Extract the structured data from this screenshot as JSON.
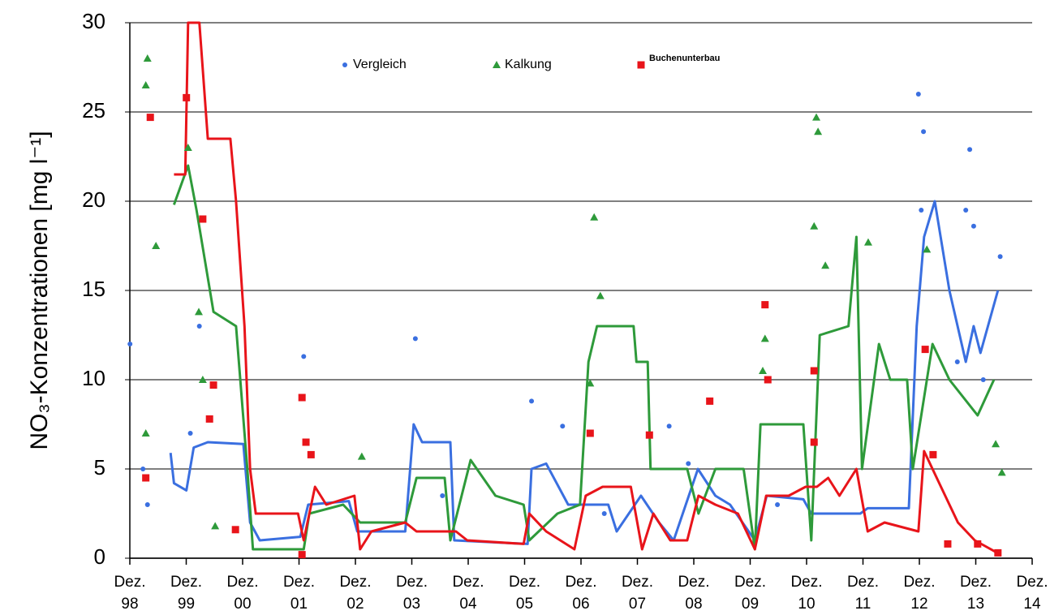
{
  "chart_data": {
    "type": "line",
    "ylabel": "NO₃-Konzentrationen [mg l⁻¹]",
    "xlim": [
      1998.917,
      2014.917
    ],
    "xticks": [
      {
        "value": 1998.917,
        "label": "Dez. 98"
      },
      {
        "value": 1999.917,
        "label": "Dez. 99"
      },
      {
        "value": 2000.917,
        "label": "Dez. 00"
      },
      {
        "value": 2001.917,
        "label": "Dez. 01"
      },
      {
        "value": 2002.917,
        "label": "Dez. 02"
      },
      {
        "value": 2003.917,
        "label": "Dez. 03"
      },
      {
        "value": 2004.917,
        "label": "Dez. 04"
      },
      {
        "value": 2005.917,
        "label": "Dez. 05"
      },
      {
        "value": 2006.917,
        "label": "Dez. 06"
      },
      {
        "value": 2007.917,
        "label": "Dez. 07"
      },
      {
        "value": 2008.917,
        "label": "Dez. 08"
      },
      {
        "value": 2009.917,
        "label": "Dez. 09"
      },
      {
        "value": 2010.917,
        "label": "Dez. 10"
      },
      {
        "value": 2011.917,
        "label": "Dez. 11"
      },
      {
        "value": 2012.917,
        "label": "Dez. 12"
      },
      {
        "value": 2013.917,
        "label": "Dez. 13"
      },
      {
        "value": 2014.917,
        "label": "Dez. 14"
      }
    ],
    "ylim": [
      0,
      30
    ],
    "yticks": [
      0,
      5,
      10,
      15,
      20,
      25,
      30
    ],
    "grid": true,
    "legend": "top",
    "series": [
      {
        "name": "Vergleich",
        "color": "#3a6fe0",
        "marker": "circle",
        "x": [
          1999.64,
          1999.7,
          1999.92,
          2000.05,
          2000.3,
          2000.93,
          2001.05,
          2001.22,
          2001.94,
          2002.08,
          2002.8,
          2002.95,
          2003.8,
          2003.95,
          2004.1,
          2004.6,
          2004.67,
          2005.97,
          2006.04,
          2006.3,
          2006.69,
          2007.4,
          2007.55,
          2007.98,
          2008.3,
          2008.56,
          2008.99,
          2009.3,
          2009.56,
          2010.0,
          2010.21,
          2010.86,
          2011.0,
          2011.87,
          2012.0,
          2012.73,
          2012.87,
          2013.0,
          2013.19,
          2013.45,
          2013.74,
          2013.88,
          2014.0,
          2014.31
        ],
        "values": [
          5.9,
          4.2,
          3.8,
          6.2,
          6.5,
          6.4,
          2,
          1,
          1.2,
          3,
          3.2,
          1.5,
          1.5,
          7.5,
          6.5,
          6.5,
          1,
          0.8,
          5,
          5.3,
          3,
          3,
          1.5,
          3.5,
          2,
          1,
          5,
          3.5,
          3,
          1,
          3.5,
          3.3,
          2.5,
          2.5,
          2.8,
          2.8,
          13,
          18,
          20,
          15,
          11,
          13,
          11.5,
          15
        ],
        "points_x": [
          1998.92,
          1999.15,
          1999.23,
          1999.99,
          2000.15,
          2002.0,
          2003.98,
          2004.46,
          2006.04,
          2006.59,
          2007.33,
          2008.48,
          2008.82,
          2010.4,
          2012.9,
          2012.99,
          2012.95,
          2013.81,
          2013.74,
          2013.88,
          2014.35,
          2014.05,
          2013.59
        ],
        "points_values": [
          12,
          5,
          3,
          7,
          13,
          11.3,
          12.3,
          3.5,
          8.8,
          7.4,
          2.5,
          7.4,
          5.3,
          3,
          26,
          23.9,
          19.5,
          22.9,
          19.5,
          18.6,
          16.9,
          10,
          11
        ]
      },
      {
        "name": "Kalkung",
        "color": "#2e9a3a",
        "marker": "triangle",
        "x": [
          1999.7,
          1999.95,
          2000.1,
          2000.4,
          2000.8,
          2001.0,
          2001.1,
          2001.6,
          2002.0,
          2002.1,
          2002.7,
          2003.0,
          2003.8,
          2004.0,
          2004.5,
          2004.6,
          2004.96,
          2005.4,
          2005.9,
          2006.0,
          2006.5,
          2006.9,
          2007.05,
          2007.2,
          2007.85,
          2007.9,
          2008.1,
          2008.15,
          2008.8,
          2009.0,
          2009.3,
          2009.8,
          2010.0,
          2010.1,
          2010.86,
          2011.0,
          2011.15,
          2011.66,
          2011.8,
          2011.9,
          2012.2,
          2012.4,
          2012.7,
          2012.8,
          2013.15,
          2013.45,
          2013.95,
          2014.24
        ],
        "values": [
          19.8,
          22,
          19.5,
          13.8,
          13,
          5,
          0.5,
          0.5,
          0.5,
          2.5,
          3,
          2,
          2,
          4.5,
          4.5,
          1,
          5.5,
          3.5,
          3,
          1,
          2.5,
          3,
          11,
          13,
          13,
          11,
          11,
          5,
          5,
          2.5,
          5,
          5,
          0.5,
          7.5,
          7.5,
          1,
          12.5,
          13,
          18,
          5,
          12,
          10,
          10,
          5,
          12,
          10,
          8,
          10
        ],
        "points_x": [
          1999.23,
          1999.2,
          1999.2,
          1999.38,
          1999.95,
          2000.14,
          2000.21,
          2000.43,
          2003.03,
          2007.15,
          2007.26,
          2007.08,
          2010.18,
          2010.14,
          2011.09,
          2011.12,
          2011.05,
          2011.25,
          2012.01,
          2013.05,
          2014.27,
          2014.38
        ],
        "points_values": [
          28,
          26.5,
          7,
          17.5,
          23,
          13.8,
          10,
          1.8,
          5.7,
          19.1,
          14.7,
          9.8,
          12.3,
          10.5,
          24.7,
          23.9,
          18.6,
          16.4,
          17.7,
          17.3,
          6.4,
          4.8
        ]
      },
      {
        "name": "Buchenunterbau",
        "color": "#e8141a",
        "marker": "square",
        "x": [
          1999.7,
          1999.9,
          1999.95,
          2000.15,
          2000.3,
          2000.7,
          2000.8,
          2000.95,
          2001.05,
          2001.15,
          2001.9,
          2002.0,
          2002.2,
          2002.4,
          2002.9,
          2003.0,
          2003.2,
          2003.8,
          2004.0,
          2004.7,
          2004.9,
          2005.9,
          2006.0,
          2006.3,
          2006.8,
          2007.0,
          2007.3,
          2007.8,
          2008.0,
          2008.2,
          2008.5,
          2008.8,
          2009.0,
          2009.3,
          2009.7,
          2010.0,
          2010.2,
          2010.6,
          2010.9,
          2011.1,
          2011.3,
          2011.5,
          2011.8,
          2012.0,
          2012.3,
          2012.9,
          2013.0,
          2013.3,
          2013.6,
          2013.9,
          2014.3
        ],
        "values": [
          21.5,
          21.5,
          30,
          30,
          23.5,
          23.5,
          20,
          13,
          5,
          2.5,
          2.5,
          1,
          4,
          3,
          3.5,
          0.5,
          1.5,
          2,
          1.5,
          1.5,
          1,
          0.8,
          2.5,
          1.5,
          0.5,
          3.5,
          4,
          4,
          0.5,
          2.5,
          1,
          1,
          3.5,
          3,
          2.5,
          0.5,
          3.5,
          3.5,
          4,
          4,
          4.5,
          3.5,
          5,
          1.5,
          2,
          1.5,
          6,
          4,
          2,
          1,
          0.3
        ],
        "points_x": [
          1999.2,
          1999.28,
          1999.92,
          2000.21,
          2000.33,
          2000.4,
          2000.79,
          2001.97,
          2002.04,
          2002.13,
          2001.97,
          2007.08,
          2008.13,
          2009.2,
          2010.18,
          2010.23,
          2011.05,
          2011.05,
          2013.02,
          2013.16,
          2013.42,
          2013.95,
          2014.31
        ],
        "points_values": [
          4.5,
          24.7,
          25.8,
          19,
          7.8,
          9.7,
          1.6,
          9,
          6.5,
          5.8,
          0.2,
          7,
          6.9,
          8.8,
          14.2,
          10,
          10.5,
          6.5,
          11.7,
          5.8,
          0.8,
          0.8,
          0.3
        ]
      }
    ]
  }
}
